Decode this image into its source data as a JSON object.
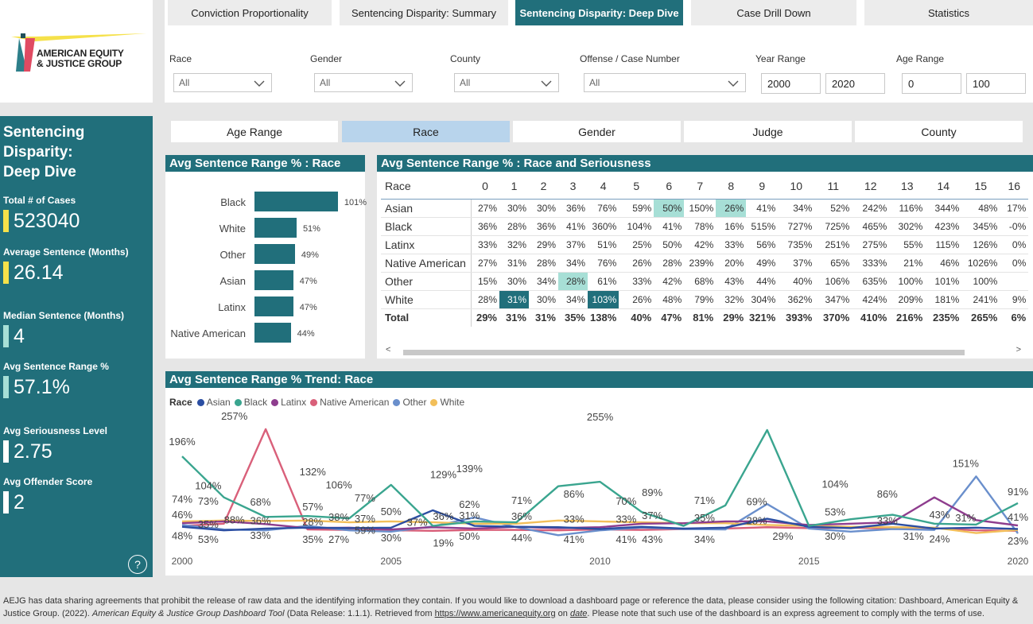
{
  "logo": {
    "line1": "AMERICAN EQUITY",
    "line2": "& JUSTICE GROUP"
  },
  "tabs": [
    {
      "label": "Conviction Proportionality",
      "active": false
    },
    {
      "label": "Sentencing Disparity: Summary",
      "active": false
    },
    {
      "label": "Sentencing Disparity: Deep Dive",
      "active": true
    },
    {
      "label": "Case Drill Down",
      "active": false
    },
    {
      "label": "Statistics",
      "active": false
    }
  ],
  "filters": {
    "race": {
      "label": "Race",
      "value": "All"
    },
    "gender": {
      "label": "Gender",
      "value": "All"
    },
    "county": {
      "label": "County",
      "value": "All"
    },
    "offense": {
      "label": "Offense / Case Number",
      "value": "All"
    },
    "year": {
      "label": "Year Range",
      "from": "2000",
      "to": "2020"
    },
    "age": {
      "label": "Age Range",
      "from": "0",
      "to": "100"
    }
  },
  "side": {
    "title_lines": [
      "Sentencing",
      "Disparity:",
      "Deep Dive"
    ],
    "kpis": [
      {
        "label": "Total # of Cases",
        "value": "523040",
        "color": "#f5e14a"
      },
      {
        "label": "Average Sentence (Months)",
        "value": "26.14",
        "color": "#f5e14a"
      },
      {
        "label": "Median Sentence (Months)",
        "value": "4",
        "color": "#a7dfd6"
      },
      {
        "label": "Avg Sentence Range %",
        "value": "57.1%",
        "color": "#a7dfd6"
      },
      {
        "label": "Avg Seriousness Level",
        "value": "2.75",
        "color": "#ffffff"
      },
      {
        "label": "Avg Offender Score",
        "value": "2",
        "color": "#ffffff"
      }
    ],
    "help": "?"
  },
  "breakdown_tabs": [
    {
      "label": "Age Range",
      "active": false
    },
    {
      "label": "Race",
      "active": true
    },
    {
      "label": "Gender",
      "active": false
    },
    {
      "label": "Judge",
      "active": false
    },
    {
      "label": "County",
      "active": false
    }
  ],
  "bar_chart": {
    "title": "Avg Sentence Range % : Race",
    "categories": [
      "Black",
      "White",
      "Other",
      "Asian",
      "Latinx",
      "Native American"
    ],
    "values": [
      101,
      51,
      49,
      47,
      47,
      44
    ],
    "labels": [
      "101%",
      "51%",
      "49%",
      "47%",
      "47%",
      "44%"
    ]
  },
  "matrix": {
    "title": "Avg Sentence Range % : Race and Seriousness",
    "row_header": "Race",
    "columns": [
      "0",
      "1",
      "2",
      "3",
      "4",
      "5",
      "6",
      "7",
      "8",
      "9",
      "10",
      "11",
      "12",
      "13",
      "14",
      "15",
      "16"
    ],
    "rows": [
      {
        "name": "Asian",
        "cells": [
          "27%",
          "30%",
          "30%",
          "36%",
          "76%",
          "59%",
          "50%",
          "150%",
          "26%",
          "41%",
          "34%",
          "52%",
          "242%",
          "116%",
          "344%",
          "48%",
          "17%"
        ],
        "shade": {
          "6": "light",
          "8": "light"
        }
      },
      {
        "name": "Black",
        "cells": [
          "36%",
          "28%",
          "36%",
          "41%",
          "360%",
          "104%",
          "41%",
          "78%",
          "16%",
          "515%",
          "727%",
          "725%",
          "465%",
          "302%",
          "423%",
          "345%",
          "-0%"
        ],
        "shade": {}
      },
      {
        "name": "Latinx",
        "cells": [
          "33%",
          "32%",
          "29%",
          "37%",
          "51%",
          "25%",
          "50%",
          "42%",
          "33%",
          "56%",
          "735%",
          "251%",
          "275%",
          "55%",
          "115%",
          "126%",
          "0%"
        ],
        "shade": {}
      },
      {
        "name": "Native American",
        "cells": [
          "27%",
          "31%",
          "28%",
          "34%",
          "76%",
          "26%",
          "28%",
          "239%",
          "20%",
          "49%",
          "37%",
          "65%",
          "333%",
          "21%",
          "46%",
          "1026%",
          "0%"
        ],
        "shade": {}
      },
      {
        "name": "Other",
        "cells": [
          "15%",
          "30%",
          "34%",
          "28%",
          "61%",
          "33%",
          "42%",
          "68%",
          "43%",
          "44%",
          "40%",
          "106%",
          "635%",
          "100%",
          "101%",
          "100%",
          ""
        ],
        "shade": {
          "3": "light"
        }
      },
      {
        "name": "White",
        "cells": [
          "28%",
          "31%",
          "30%",
          "34%",
          "103%",
          "26%",
          "48%",
          "79%",
          "32%",
          "304%",
          "362%",
          "347%",
          "424%",
          "209%",
          "181%",
          "241%",
          "9%"
        ],
        "shade": {
          "1": "dark",
          "4": "dark"
        }
      },
      {
        "name": "Total",
        "cells": [
          "29%",
          "31%",
          "31%",
          "35%",
          "138%",
          "40%",
          "47%",
          "81%",
          "29%",
          "321%",
          "393%",
          "370%",
          "410%",
          "216%",
          "235%",
          "265%",
          "6%"
        ],
        "shade": {},
        "total": true
      }
    ]
  },
  "chart_data": {
    "type": "line",
    "title": "Avg Sentence Range % Trend: Race",
    "legend_title": "Race",
    "x": [
      2000,
      2001,
      2002,
      2003,
      2004,
      2005,
      2006,
      2007,
      2008,
      2009,
      2010,
      2011,
      2012,
      2013,
      2014,
      2015,
      2016,
      2017,
      2018,
      2019,
      2020
    ],
    "x_ticks": [
      "2000",
      "2005",
      "2010",
      "2015",
      "2020"
    ],
    "ylim": [
      0,
      280
    ],
    "series": [
      {
        "name": "Asian",
        "color": "#2b4ea2",
        "values": [
          38,
          30,
          34,
          36,
          35,
          36,
          75,
          40,
          38,
          37,
          33,
          38,
          34,
          36,
          56,
          38,
          35,
          45,
          34,
          36,
          33
        ]
      },
      {
        "name": "Black",
        "color": "#3aa58f",
        "values": [
          196,
          104,
          60,
          62,
          57,
          132,
          40,
          50,
          48,
          129,
          139,
          71,
          40,
          86,
          255,
          40,
          55,
          65,
          45,
          43,
          91
        ]
      },
      {
        "name": "Latinx",
        "color": "#8e3d8e",
        "values": [
          46,
          50,
          44,
          35,
          36,
          32,
          37,
          34,
          38,
          35,
          37,
          45,
          46,
          50,
          50,
          42,
          45,
          48,
          104,
          53,
          41
        ]
      },
      {
        "name": "Native American",
        "color": "#d9607a",
        "values": [
          40,
          45,
          257,
          32,
          31,
          30,
          29,
          31,
          31,
          30,
          32,
          31,
          33,
          34,
          37,
          35,
          36,
          34,
          35,
          30,
          29
        ]
      },
      {
        "name": "Other",
        "color": "#6a8fcc",
        "values": [
          42,
          32,
          30,
          40,
          30,
          27,
          39,
          59,
          37,
          19,
          30,
          36,
          33,
          32,
          89,
          34,
          27,
          33,
          31,
          151,
          23
        ]
      },
      {
        "name": "White",
        "color": "#f2bf5a",
        "values": [
          50,
          52,
          51,
          52,
          48,
          50,
          48,
          45,
          45,
          52,
          50,
          48,
          46,
          46,
          42,
          40,
          38,
          37,
          36,
          24,
          31
        ]
      }
    ],
    "point_labels": [
      {
        "text": "196%",
        "xi": 0,
        "v": 196,
        "dy": -14
      },
      {
        "text": "74%",
        "xi": 0,
        "v": 74,
        "dy": -10
      },
      {
        "text": "46%",
        "xi": 0,
        "v": 46,
        "dy": -6
      },
      {
        "text": "48%",
        "xi": 0,
        "v": 38,
        "dy": 16
      },
      {
        "text": "104%",
        "xi": 1,
        "v": 104,
        "dy": -10
      },
      {
        "text": "73%",
        "xi": 1,
        "v": 73,
        "dy": -8
      },
      {
        "text": "35%",
        "xi": 1,
        "v": 50,
        "dy": 8
      },
      {
        "text": "53%",
        "xi": 1,
        "v": 30,
        "dy": 16
      },
      {
        "text": "257%",
        "xi": 2,
        "v": 257,
        "dy": -12
      },
      {
        "text": "88%",
        "xi": 2,
        "v": 60,
        "dy": 8
      },
      {
        "text": "33%",
        "xi": 3,
        "v": 36,
        "dy": 14
      },
      {
        "text": "68%",
        "xi": 3,
        "v": 68,
        "dy": -10
      },
      {
        "text": "36%",
        "xi": 3,
        "v": 40,
        "dy": -2
      },
      {
        "text": "132%",
        "xi": 5,
        "v": 132,
        "dy": -12
      },
      {
        "text": "57%",
        "xi": 5,
        "v": 57,
        "dy": -10
      },
      {
        "text": "28%",
        "xi": 5,
        "v": 30,
        "dy": -6
      },
      {
        "text": "35%",
        "xi": 5,
        "v": 30,
        "dy": 16
      },
      {
        "text": "106%",
        "xi": 6,
        "v": 106,
        "dy": -10
      },
      {
        "text": "38%",
        "xi": 6,
        "v": 48,
        "dy": -2
      },
      {
        "text": "27%",
        "xi": 6,
        "v": 27,
        "dy": 14
      },
      {
        "text": "77%",
        "xi": 7,
        "v": 77,
        "dy": -10
      },
      {
        "text": "37%",
        "xi": 7,
        "v": 45,
        "dy": -2
      },
      {
        "text": "59%",
        "xi": 7,
        "v": 40,
        "dy": 10
      },
      {
        "text": "50%",
        "xi": 8,
        "v": 50,
        "dy": -8
      },
      {
        "text": "30%",
        "xi": 8,
        "v": 30,
        "dy": 14
      },
      {
        "text": "37%",
        "xi": 9,
        "v": 37,
        "dy": -2
      },
      {
        "text": "129%",
        "xi": 10,
        "v": 129,
        "dy": -10
      },
      {
        "text": "36%",
        "xi": 10,
        "v": 46,
        "dy": -4
      },
      {
        "text": "19%",
        "xi": 10,
        "v": 19,
        "dy": 14
      },
      {
        "text": "139%",
        "xi": 11,
        "v": 139,
        "dy": -12
      },
      {
        "text": "62%",
        "xi": 11,
        "v": 62,
        "dy": -10
      },
      {
        "text": "31%",
        "xi": 11,
        "v": 48,
        "dy": -4
      },
      {
        "text": "50%",
        "xi": 11,
        "v": 30,
        "dy": 12
      },
      {
        "text": "71%",
        "xi": 13,
        "v": 71,
        "dy": -10
      },
      {
        "text": "36%",
        "xi": 13,
        "v": 46,
        "dy": -4
      },
      {
        "text": "44%",
        "xi": 13,
        "v": 30,
        "dy": 14
      },
      {
        "text": "86%",
        "xi": 15,
        "v": 86,
        "dy": -10
      },
      {
        "text": "33%",
        "xi": 15,
        "v": 40,
        "dy": -4
      },
      {
        "text": "41%",
        "xi": 15,
        "v": 30,
        "dy": 16
      },
      {
        "text": "255%",
        "xi": 16,
        "v": 255,
        "dy": -12
      },
      {
        "text": "70%",
        "xi": 17,
        "v": 70,
        "dy": -10
      },
      {
        "text": "33%",
        "xi": 17,
        "v": 40,
        "dy": -4
      },
      {
        "text": "41%",
        "xi": 17,
        "v": 30,
        "dy": 16
      },
      {
        "text": "89%",
        "xi": 18,
        "v": 89,
        "dy": -10
      },
      {
        "text": "37%",
        "xi": 18,
        "v": 48,
        "dy": -4
      },
      {
        "text": "43%",
        "xi": 18,
        "v": 30,
        "dy": 16
      }
    ],
    "point_labels2": [
      {
        "text": "71%",
        "xi": 20,
        "v": 71,
        "dy": -10
      },
      {
        "text": "35%",
        "xi": 20,
        "v": 46,
        "dy": -2
      },
      {
        "text": "34%",
        "xi": 20,
        "v": 30,
        "dy": 16
      },
      {
        "text": "69%",
        "xi": 22,
        "v": 69,
        "dy": -10
      },
      {
        "text": "28%",
        "xi": 22,
        "v": 40,
        "dy": -2
      },
      {
        "text": "29%",
        "xi": 23,
        "v": 30,
        "dy": 12
      },
      {
        "text": "104%",
        "xi": 25,
        "v": 104,
        "dy": -12
      },
      {
        "text": "53%",
        "xi": 25,
        "v": 60,
        "dy": -2
      },
      {
        "text": "30%",
        "xi": 25,
        "v": 30,
        "dy": 12
      },
      {
        "text": "86%",
        "xi": 27,
        "v": 86,
        "dy": -10
      },
      {
        "text": "33%",
        "xi": 27,
        "v": 40,
        "dy": -2
      },
      {
        "text": "31%",
        "xi": 28,
        "v": 30,
        "dy": 12
      },
      {
        "text": "43%",
        "xi": 29,
        "v": 43,
        "dy": -8
      },
      {
        "text": "24%",
        "xi": 29,
        "v": 24,
        "dy": 12
      },
      {
        "text": "151%",
        "xi": 30,
        "v": 151,
        "dy": -12
      },
      {
        "text": "31%",
        "xi": 30,
        "v": 46,
        "dy": -2
      },
      {
        "text": "91%",
        "xi": 32,
        "v": 91,
        "dy": -10
      },
      {
        "text": "41%",
        "xi": 32,
        "v": 48,
        "dy": -2
      },
      {
        "text": "23%",
        "xi": 32,
        "v": 23,
        "dy": 14
      }
    ]
  },
  "footer": {
    "t1": "AEJG has data sharing agreements that prohibit the release of raw data and the identifying information they contain. If you would like to download a dashboard page or reference the data, please consider using the following citation: Dashboard, American Equity & Justice Group. (2022).",
    "t2": "American Equity & Justice Group Dashboard Tool",
    "t3": "(Data Release: 1.1.1). Retrieved from",
    "link": "https://www.americanequity.org",
    "t4": "on",
    "t5": "date",
    "t6": ". Please note that such use of the dashboard is an express agreement to comply with the terms of use."
  }
}
